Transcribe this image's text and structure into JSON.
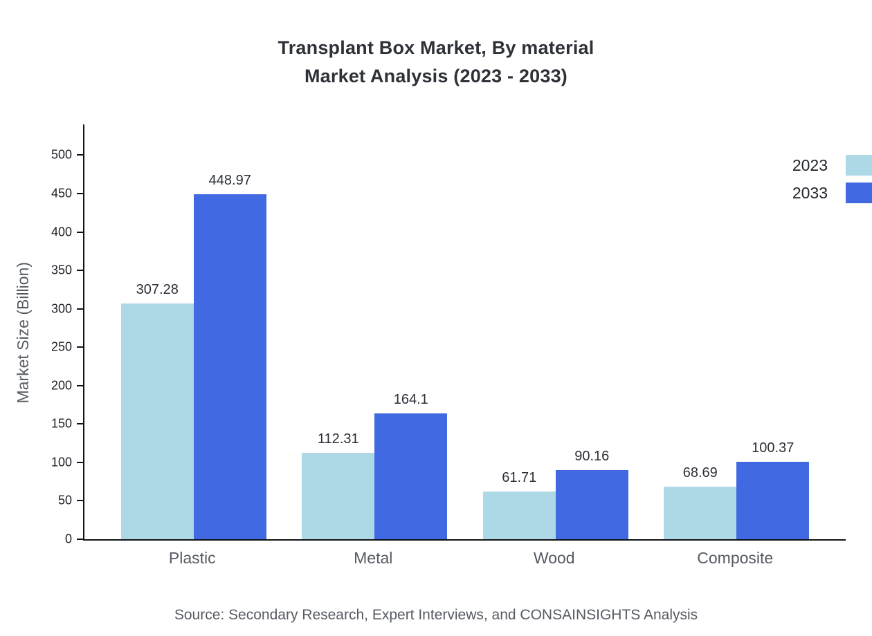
{
  "chart_data": {
    "type": "bar",
    "title": "Transplant Box Market, By material",
    "subtitle": "Market Analysis (2023 - 2033)",
    "categories": [
      "Plastic",
      "Metal",
      "Wood",
      "Composite"
    ],
    "series": [
      {
        "name": "2023",
        "color": "#ADD8E6",
        "values": [
          307.28,
          112.31,
          61.71,
          68.69
        ]
      },
      {
        "name": "2033",
        "color": "#4169E1",
        "values": [
          448.97,
          164.1,
          90.16,
          100.37
        ]
      }
    ],
    "xlabel": "",
    "ylabel": "Market Size (Billion)",
    "ylim": [
      0,
      540
    ],
    "yticks": [
      0,
      50,
      100,
      150,
      200,
      250,
      300,
      350,
      400,
      450,
      500
    ],
    "grid": false,
    "legend_position": "top-right",
    "axis_color": "#101114",
    "value_label_color": "#2b2f36"
  },
  "source_note": "Source: Secondary Research, Expert Interviews, and CONSAINSIGHTS Analysis"
}
